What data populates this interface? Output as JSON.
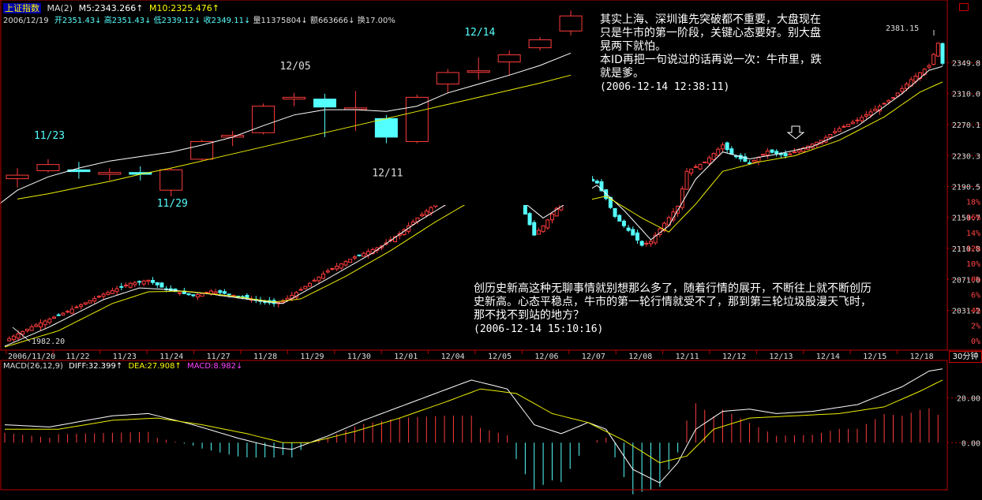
{
  "header": {
    "index_name": "上证指数",
    "ma_label": "MA(2)",
    "ma5": "M5:2343.266↑",
    "ma10": "M10:2325.476↑",
    "date": "2006/12/19",
    "open": "开2351.43↓",
    "high": "高2351.43↓",
    "low": "低2339.12↓",
    "close": "收2349.11↓",
    "volume": "量11375804↓",
    "amount": "额663666↓",
    "turnover": "换17.00%"
  },
  "macd_header": {
    "label": "MACD(26,12,9)",
    "diff": "DIFF:32.399↑",
    "dea": "DEA:27.908↑",
    "macd": "MACD:8.982↓"
  },
  "period_button": "30分钟",
  "corner_icon": "square-icon",
  "inset": {
    "labels": [
      "11/23",
      "11/29",
      "12/05",
      "12/11",
      "12/14"
    ],
    "candles": [
      {
        "o": 2108,
        "c": 2112,
        "h": 2120,
        "l": 2098
      },
      {
        "o": 2117,
        "c": 2124,
        "h": 2130,
        "l": 2115
      },
      {
        "o": 2118,
        "c": 2116,
        "h": 2127,
        "l": 2108
      },
      {
        "o": 2113,
        "c": 2115,
        "h": 2120,
        "l": 2106
      },
      {
        "o": 2115,
        "c": 2113,
        "h": 2122,
        "l": 2106
      },
      {
        "o": 2095,
        "c": 2118,
        "h": 2120,
        "l": 2088
      },
      {
        "o": 2130,
        "c": 2150,
        "h": 2152,
        "l": 2128
      },
      {
        "o": 2155,
        "c": 2157,
        "h": 2162,
        "l": 2145
      },
      {
        "o": 2160,
        "c": 2190,
        "h": 2193,
        "l": 2158
      },
      {
        "o": 2198,
        "c": 2200,
        "h": 2205,
        "l": 2190
      },
      {
        "o": 2198,
        "c": 2189,
        "h": 2204,
        "l": 2155
      },
      {
        "o": 2187,
        "c": 2188,
        "h": 2207,
        "l": 2162
      },
      {
        "o": 2176,
        "c": 2155,
        "h": 2180,
        "l": 2148
      },
      {
        "o": 2150,
        "c": 2200,
        "h": 2203,
        "l": 2148
      },
      {
        "o": 2215,
        "c": 2228,
        "h": 2232,
        "l": 2205
      },
      {
        "o": 2230,
        "c": 2230,
        "h": 2245,
        "l": 2220
      },
      {
        "o": 2240,
        "c": 2248,
        "h": 2253,
        "l": 2225
      },
      {
        "o": 2256,
        "c": 2265,
        "h": 2268,
        "l": 2253
      },
      {
        "o": 2275,
        "c": 2292,
        "h": 2298,
        "l": 2270
      }
    ],
    "ma_fast": [
      2095,
      2110,
      2120,
      2128,
      2133,
      2138,
      2146,
      2155,
      2168,
      2180,
      2186,
      2186,
      2184,
      2190,
      2205,
      2215,
      2225,
      2236,
      2250
    ],
    "ma_slow": [
      2085,
      2091,
      2098,
      2105,
      2113,
      2120,
      2128,
      2136,
      2144,
      2152,
      2160,
      2168,
      2176,
      2184,
      2192,
      2200,
      2208,
      2216,
      2225
    ]
  },
  "notes": [
    {
      "lines": [
        "其实上海、深圳谁先突破都不重要，大盘现在",
        "只是牛市的第一阶段，关键心态要好。别大盘",
        "晃两下就怕。",
        "本ID再把一句说过的话再说一次：牛市里，跌",
        "就是爹。"
      ],
      "time": "(2006-12-14 12:38:11)"
    },
    {
      "lines": [
        "创历史新高这种无聊事情就别想那么多了，随着行情的展开，不断往上就不断创历",
        "史新高。心态平稳点，牛市的第一轮行情就受不了，那到第三轮垃圾股漫天飞时，",
        "那不找不到站的地方？"
      ],
      "time": "(2006-12-14 15:10:16)"
    }
  ],
  "annotations": {
    "low_label": "1982.20",
    "high_label": "2381.15"
  },
  "chart_data": {
    "type": "candlestick",
    "title": "上证指数",
    "ylim": [
      1982,
      2400
    ],
    "y_ticks": [
      2031.2,
      2071.0,
      2110.8,
      2150.7,
      2190.5,
      2230.3,
      2270.1,
      2310.0,
      2349.8
    ],
    "y_pct_ticks": [
      "0%",
      "2%",
      "4%",
      "6%",
      "8%",
      "10%",
      "12%",
      "14%",
      "16%",
      "18%"
    ],
    "x_ticks": [
      "2006/11/20",
      "11/22",
      "11/23",
      "11/24",
      "11/27",
      "11/28",
      "11/29",
      "11/30",
      "12/01",
      "12/04",
      "12/05",
      "12/06",
      "12/07",
      "12/08",
      "12/11",
      "12/12",
      "12/13",
      "12/14",
      "12/15",
      "12/18"
    ],
    "close_path": [
      [
        0,
        1992
      ],
      [
        6,
        2010
      ],
      [
        14,
        2030
      ],
      [
        22,
        2052
      ],
      [
        28,
        2066
      ],
      [
        32,
        2070
      ],
      [
        36,
        2058
      ],
      [
        42,
        2050
      ],
      [
        46,
        2056
      ],
      [
        50,
        2052
      ],
      [
        56,
        2044
      ],
      [
        60,
        2040
      ],
      [
        62,
        2043
      ],
      [
        66,
        2058
      ],
      [
        72,
        2082
      ],
      [
        78,
        2100
      ],
      [
        84,
        2114
      ],
      [
        88,
        2130
      ],
      [
        92,
        2150
      ],
      [
        96,
        2168
      ],
      [
        102,
        2188
      ],
      [
        106,
        2185
      ],
      [
        108,
        2195
      ],
      [
        112,
        2190
      ],
      [
        114,
        2180
      ],
      [
        116,
        2155
      ],
      [
        118,
        2128
      ],
      [
        120,
        2140
      ],
      [
        124,
        2170
      ],
      [
        128,
        2190
      ],
      [
        130,
        2200
      ],
      [
        132,
        2195
      ],
      [
        134,
        2175
      ],
      [
        136,
        2152
      ],
      [
        138,
        2140
      ],
      [
        140,
        2128
      ],
      [
        142,
        2115
      ],
      [
        144,
        2120
      ],
      [
        146,
        2136
      ],
      [
        150,
        2165
      ],
      [
        152,
        2210
      ],
      [
        156,
        2222
      ],
      [
        160,
        2244
      ],
      [
        162,
        2232
      ],
      [
        166,
        2220
      ],
      [
        170,
        2236
      ],
      [
        174,
        2230
      ],
      [
        178,
        2240
      ],
      [
        182,
        2250
      ],
      [
        186,
        2265
      ],
      [
        190,
        2276
      ],
      [
        194,
        2290
      ],
      [
        198,
        2305
      ],
      [
        202,
        2328
      ],
      [
        206,
        2346
      ],
      [
        208,
        2375
      ],
      [
        209,
        2349
      ]
    ],
    "ma_fast_path": [
      [
        0,
        1985
      ],
      [
        10,
        2010
      ],
      [
        22,
        2045
      ],
      [
        30,
        2060
      ],
      [
        36,
        2058
      ],
      [
        46,
        2052
      ],
      [
        56,
        2044
      ],
      [
        62,
        2040
      ],
      [
        72,
        2072
      ],
      [
        82,
        2105
      ],
      [
        92,
        2145
      ],
      [
        102,
        2180
      ],
      [
        108,
        2190
      ],
      [
        114,
        2178
      ],
      [
        120,
        2150
      ],
      [
        126,
        2172
      ],
      [
        132,
        2192
      ],
      [
        138,
        2160
      ],
      [
        144,
        2122
      ],
      [
        148,
        2140
      ],
      [
        154,
        2200
      ],
      [
        160,
        2235
      ],
      [
        166,
        2226
      ],
      [
        172,
        2232
      ],
      [
        180,
        2242
      ],
      [
        190,
        2268
      ],
      [
        200,
        2310
      ],
      [
        206,
        2340
      ],
      [
        209,
        2345
      ]
    ],
    "ma_slow_path": [
      [
        0,
        1984
      ],
      [
        12,
        2005
      ],
      [
        24,
        2040
      ],
      [
        32,
        2055
      ],
      [
        40,
        2056
      ],
      [
        50,
        2050
      ],
      [
        60,
        2042
      ],
      [
        66,
        2046
      ],
      [
        76,
        2075
      ],
      [
        86,
        2108
      ],
      [
        96,
        2145
      ],
      [
        104,
        2172
      ],
      [
        112,
        2180
      ],
      [
        118,
        2172
      ],
      [
        126,
        2168
      ],
      [
        134,
        2178
      ],
      [
        142,
        2150
      ],
      [
        148,
        2132
      ],
      [
        154,
        2168
      ],
      [
        160,
        2210
      ],
      [
        168,
        2222
      ],
      [
        176,
        2230
      ],
      [
        186,
        2250
      ],
      [
        196,
        2280
      ],
      [
        204,
        2312
      ],
      [
        209,
        2325
      ]
    ],
    "macd": {
      "y_ticks": [
        0,
        20
      ],
      "ylim": [
        -20,
        35
      ],
      "diff_path": [
        [
          0,
          8
        ],
        [
          10,
          7
        ],
        [
          24,
          12
        ],
        [
          32,
          13
        ],
        [
          42,
          8
        ],
        [
          52,
          2
        ],
        [
          60,
          -2
        ],
        [
          64,
          -3
        ],
        [
          72,
          3
        ],
        [
          80,
          10
        ],
        [
          88,
          16
        ],
        [
          96,
          22
        ],
        [
          104,
          28
        ],
        [
          112,
          24
        ],
        [
          118,
          8
        ],
        [
          124,
          4
        ],
        [
          130,
          9
        ],
        [
          134,
          6
        ],
        [
          140,
          -12
        ],
        [
          146,
          -18
        ],
        [
          150,
          -9
        ],
        [
          154,
          6
        ],
        [
          160,
          14
        ],
        [
          166,
          15
        ],
        [
          172,
          13
        ],
        [
          180,
          14
        ],
        [
          190,
          17
        ],
        [
          200,
          25
        ],
        [
          206,
          32
        ],
        [
          209,
          33
        ]
      ],
      "dea_path": [
        [
          0,
          6
        ],
        [
          12,
          6
        ],
        [
          24,
          10
        ],
        [
          34,
          11
        ],
        [
          44,
          8
        ],
        [
          54,
          4
        ],
        [
          62,
          0
        ],
        [
          68,
          0
        ],
        [
          78,
          5
        ],
        [
          88,
          11
        ],
        [
          98,
          18
        ],
        [
          106,
          24
        ],
        [
          114,
          22
        ],
        [
          122,
          13
        ],
        [
          130,
          9
        ],
        [
          138,
          1
        ],
        [
          146,
          -9
        ],
        [
          152,
          -6
        ],
        [
          158,
          6
        ],
        [
          166,
          11
        ],
        [
          176,
          12
        ],
        [
          186,
          13
        ],
        [
          196,
          16
        ],
        [
          204,
          23
        ],
        [
          209,
          28
        ]
      ]
    }
  }
}
